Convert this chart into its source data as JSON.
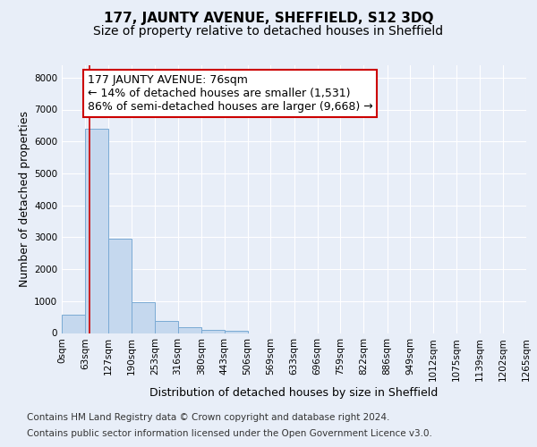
{
  "title": "177, JAUNTY AVENUE, SHEFFIELD, S12 3DQ",
  "subtitle": "Size of property relative to detached houses in Sheffield",
  "xlabel": "Distribution of detached houses by size in Sheffield",
  "ylabel": "Number of detached properties",
  "bin_edges": [
    0,
    63,
    127,
    190,
    253,
    316,
    380,
    443,
    506,
    569,
    633,
    696,
    759,
    822,
    886,
    949,
    1012,
    1075,
    1139,
    1202,
    1265
  ],
  "bar_heights": [
    580,
    6400,
    2950,
    960,
    380,
    175,
    100,
    75,
    0,
    0,
    0,
    0,
    0,
    0,
    0,
    0,
    0,
    0,
    0,
    0
  ],
  "bar_color": "#c5d8ee",
  "bar_edge_color": "#7aaad4",
  "property_size": 76,
  "vline_color": "#cc0000",
  "annotation_line1": "177 JAUNTY AVENUE: 76sqm",
  "annotation_line2": "← 14% of detached houses are smaller (1,531)",
  "annotation_line3": "86% of semi-detached houses are larger (9,668) →",
  "annotation_box_facecolor": "#ffffff",
  "annotation_box_edgecolor": "#cc0000",
  "ylim": [
    0,
    8400
  ],
  "yticks": [
    0,
    1000,
    2000,
    3000,
    4000,
    5000,
    6000,
    7000,
    8000
  ],
  "tick_labels": [
    "0sqm",
    "63sqm",
    "127sqm",
    "190sqm",
    "253sqm",
    "316sqm",
    "380sqm",
    "443sqm",
    "506sqm",
    "569sqm",
    "633sqm",
    "696sqm",
    "759sqm",
    "822sqm",
    "886sqm",
    "949sqm",
    "1012sqm",
    "1075sqm",
    "1139sqm",
    "1202sqm",
    "1265sqm"
  ],
  "footer_line1": "Contains HM Land Registry data © Crown copyright and database right 2024.",
  "footer_line2": "Contains public sector information licensed under the Open Government Licence v3.0.",
  "background_color": "#e8eef8",
  "grid_color": "#ffffff",
  "title_fontsize": 11,
  "subtitle_fontsize": 10,
  "axis_label_fontsize": 9,
  "tick_fontsize": 7.5,
  "annotation_fontsize": 9,
  "footer_fontsize": 7.5
}
